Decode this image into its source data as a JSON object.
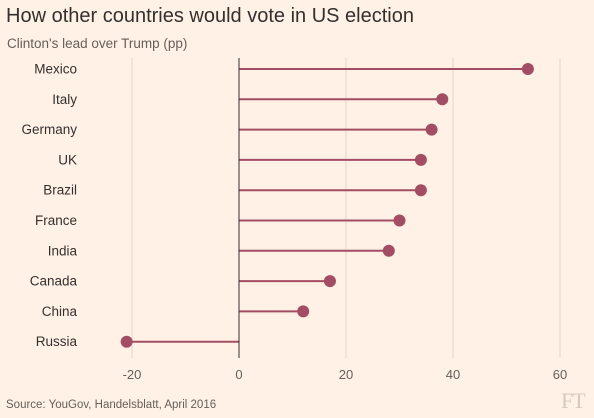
{
  "title": "How other countries would vote in US election",
  "subtitle": "Clinton's lead over Trump (pp)",
  "source": "Source: YouGov, Handelsblatt, April 2016",
  "logo": "FT",
  "colors": {
    "background": "#fff1e5",
    "series": "#a24d63",
    "gridline": "#e3d6c9",
    "zero_line": "#33302e",
    "text": "#33302e"
  },
  "chart_data": {
    "type": "lollipop",
    "title": "How other countries would vote in US election",
    "subtitle": "Clinton's lead over Trump (pp)",
    "categories": [
      "Mexico",
      "Italy",
      "Germany",
      "UK",
      "Brazil",
      "France",
      "India",
      "Canada",
      "China",
      "Russia"
    ],
    "values": [
      54,
      38,
      36,
      34,
      34,
      30,
      28,
      17,
      12,
      -21
    ],
    "xlim": [
      -25,
      62
    ],
    "xticks": [
      -20,
      0,
      20,
      40,
      60
    ],
    "grid": true,
    "orientation": "horizontal"
  }
}
